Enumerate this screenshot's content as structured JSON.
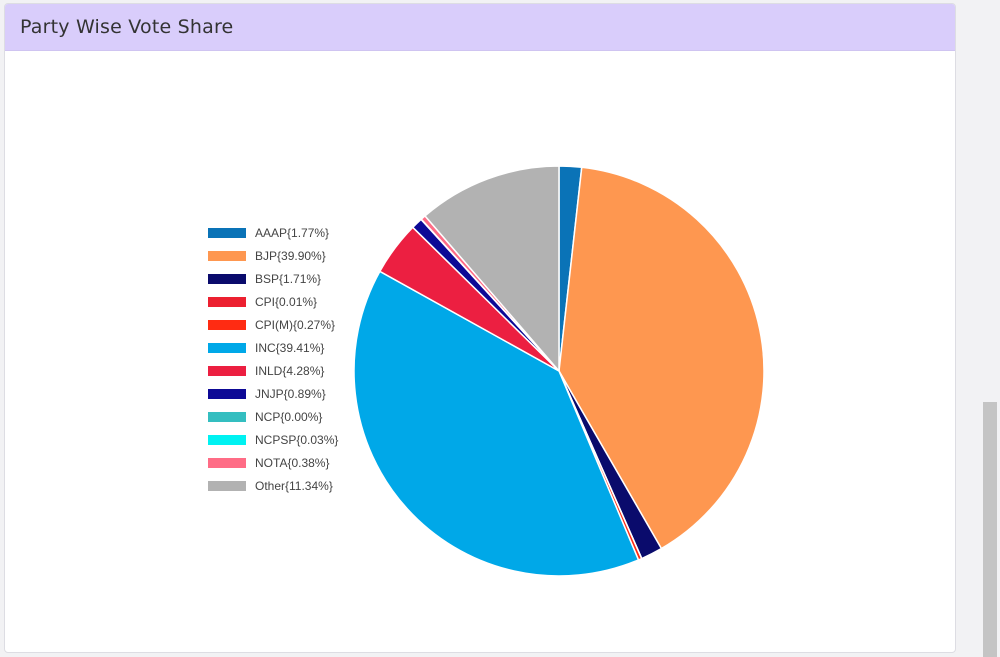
{
  "card": {
    "title": "Party Wise Vote Share"
  },
  "chart_data": {
    "type": "pie",
    "title": "Party Wise Vote Share",
    "legend_position": "left",
    "slices": [
      {
        "label": "AAAP{1.77%}",
        "name": "AAAP",
        "value": 1.77,
        "color": "#0a73b7"
      },
      {
        "label": "BJP{39.90%}",
        "name": "BJP",
        "value": 39.9,
        "color": "#fe9750"
      },
      {
        "label": "BSP{1.71%}",
        "name": "BSP",
        "value": 1.71,
        "color": "#0a0b6c"
      },
      {
        "label": "CPI{0.01%}",
        "name": "CPI",
        "value": 0.01,
        "color": "#ec2030"
      },
      {
        "label": "CPI(M){0.27%}",
        "name": "CPI(M)",
        "value": 0.27,
        "color": "#ff2b12"
      },
      {
        "label": "INC{39.41%}",
        "name": "INC",
        "value": 39.41,
        "color": "#00a8e8"
      },
      {
        "label": "INLD{4.28%}",
        "name": "INLD",
        "value": 4.28,
        "color": "#ec1f41"
      },
      {
        "label": "JNJP{0.89%}",
        "name": "JNJP",
        "value": 0.89,
        "color": "#0d0996"
      },
      {
        "label": "NCP{0.00%}",
        "name": "NCP",
        "value": 0.0,
        "color": "#34bec0"
      },
      {
        "label": "NCPSP{0.03%}",
        "name": "NCPSP",
        "value": 0.03,
        "color": "#00f2f2"
      },
      {
        "label": "NOTA{0.38%}",
        "name": "NOTA",
        "value": 0.38,
        "color": "#ff6c86"
      },
      {
        "label": "Other{11.34%}",
        "name": "Other",
        "value": 11.34,
        "color": "#b2b2b2"
      }
    ]
  }
}
